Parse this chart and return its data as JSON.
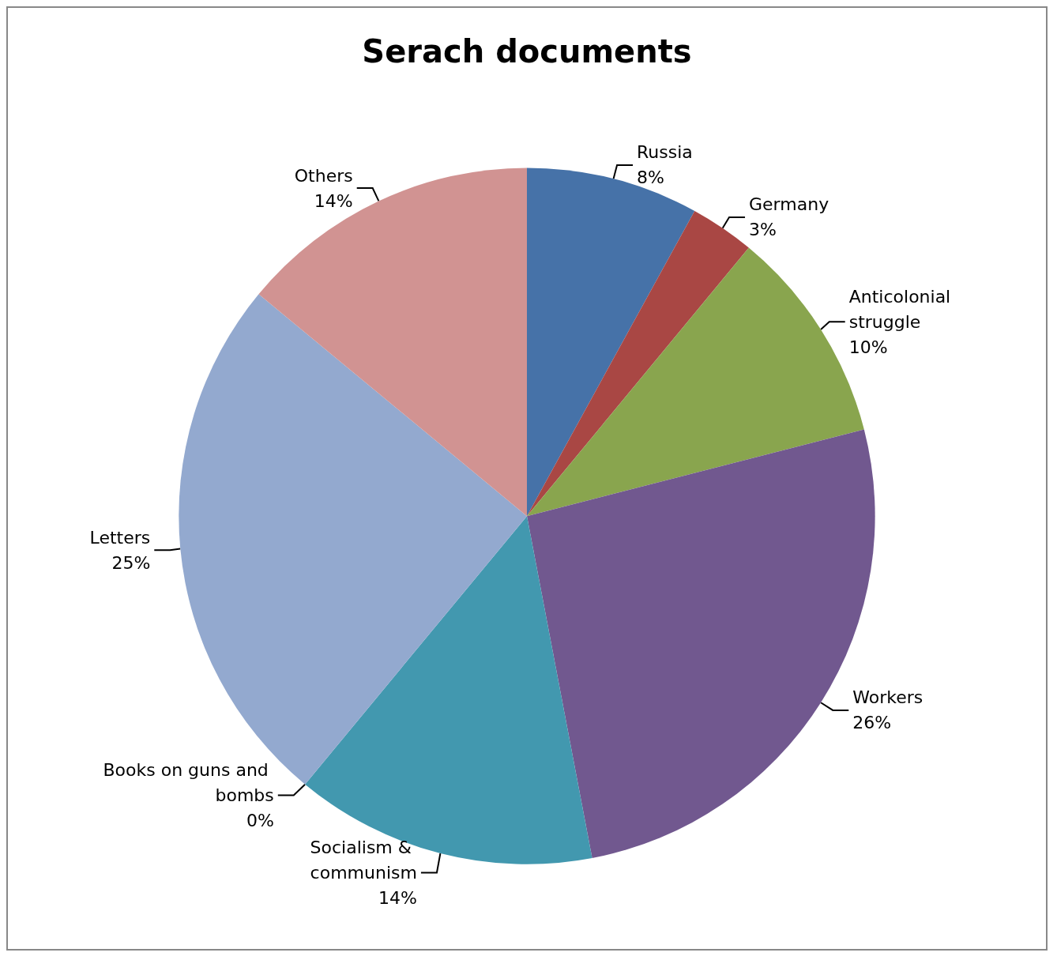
{
  "chart_data": {
    "type": "pie",
    "title": "Serach documents",
    "categories": [
      "Russia",
      "Germany",
      "Anticolonial struggle",
      "Workers",
      "Socialism & communism",
      "Books on guns and bombs",
      "Letters",
      "Others"
    ],
    "values": [
      8,
      3,
      10,
      26,
      14,
      0,
      25,
      14
    ],
    "value_labels": [
      "8%",
      "3%",
      "10%",
      "26%",
      "14%",
      "0%",
      "25%",
      "14%"
    ],
    "colors": [
      "#4672a8",
      "#a94744",
      "#89a54e",
      "#71588f",
      "#4298af",
      "#db843d",
      "#93a9cf",
      "#d19392"
    ]
  }
}
